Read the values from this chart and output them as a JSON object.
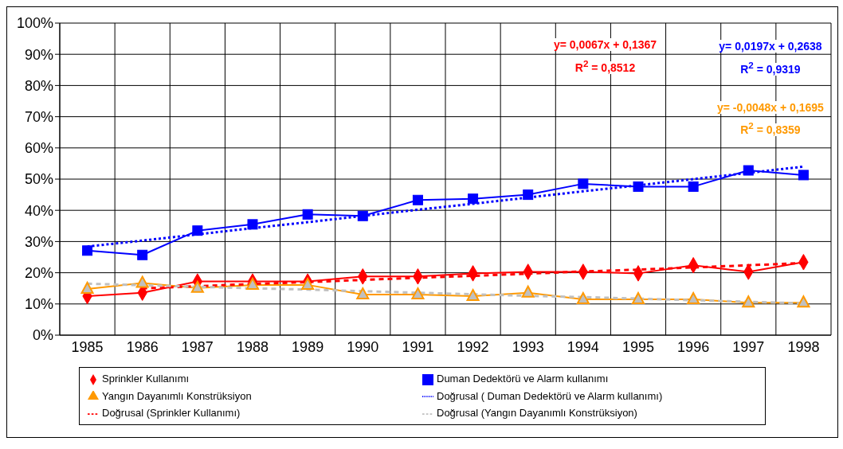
{
  "chart_data": {
    "type": "line",
    "categories": [
      "1985",
      "1986",
      "1987",
      "1988",
      "1989",
      "1990",
      "1991",
      "1992",
      "1993",
      "1994",
      "1995",
      "1996",
      "1997",
      "1998"
    ],
    "series": [
      {
        "name": "Sprinkler Kullanımı",
        "color": "#ff0000",
        "marker": "diamond",
        "line_style": "solid",
        "values": [
          12.5,
          13.6,
          17.2,
          17.2,
          17.2,
          18.8,
          18.8,
          19.8,
          20.3,
          20.3,
          19.8,
          22.4,
          20.3,
          23.4
        ]
      },
      {
        "name": "Duman Dedektörü ve Alarm kullanımı",
        "color": "#0000ff",
        "marker": "square",
        "line_style": "solid",
        "values": [
          27.1,
          25.7,
          33.5,
          35.5,
          38.7,
          38.2,
          43.3,
          43.7,
          45.0,
          48.5,
          47.6,
          47.6,
          52.8,
          51.3
        ]
      },
      {
        "name": "Yangın Dayanımlı Konstrüksiyon",
        "color": "#ff9900",
        "marker": "triangle",
        "line_style": "solid",
        "values": [
          14.8,
          16.7,
          15.1,
          16.1,
          16.1,
          13.0,
          13.0,
          12.5,
          13.6,
          11.5,
          11.5,
          11.5,
          10.4,
          10.4
        ]
      },
      {
        "name": "Doğrusal ( Duman Dedektörü ve Alarm kullanımı)",
        "color": "#0000ff",
        "marker": "none",
        "line_style": "dotted",
        "values": [
          28.4,
          30.3,
          32.3,
          34.3,
          36.2,
          38.2,
          40.2,
          42.1,
          44.1,
          46.1,
          48.0,
          50.0,
          52.0,
          54.0
        ]
      },
      {
        "name": "Doğrusal (Sprinkler Kullanımı)",
        "color": "#ff0000",
        "marker": "none",
        "line_style": "dashed",
        "values": [
          null,
          15.0,
          15.7,
          16.4,
          17.0,
          17.7,
          18.4,
          19.0,
          19.7,
          20.4,
          21.0,
          21.7,
          22.4,
          23.1
        ]
      },
      {
        "name": "Doğrusal (Yangın Dayanımlı Konstrüksiyon)",
        "color": "#c0c0c0",
        "marker": "none",
        "line_style": "dashed",
        "values": [
          16.5,
          16.0,
          15.5,
          15.0,
          14.6,
          14.1,
          13.6,
          13.1,
          12.6,
          12.2,
          11.7,
          11.2,
          10.7,
          10.2
        ]
      }
    ],
    "ylim": [
      0,
      100
    ],
    "yticks": [
      {
        "value": 0,
        "label": "0%"
      },
      {
        "value": 10,
        "label": "10%"
      },
      {
        "value": 20,
        "label": "20%"
      },
      {
        "value": 30,
        "label": "30%"
      },
      {
        "value": 40,
        "label": "40%"
      },
      {
        "value": 50,
        "label": "50%"
      },
      {
        "value": 60,
        "label": "60%"
      },
      {
        "value": 70,
        "label": "70%"
      },
      {
        "value": 80,
        "label": "80%"
      },
      {
        "value": 90,
        "label": "90%"
      },
      {
        "value": 100,
        "label": "100%"
      }
    ],
    "grid": true,
    "legend": "bottom",
    "annotations": [
      "y= 0,0067x + 0,1367",
      "R$^{2}$ = 0,8512",
      "y= 0,0197x + 0,2638",
      "R$^{2}$ = 0,9319",
      "y= -0,0048x + 0,1695",
      "R$^{2}$ = 0,8359"
    ]
  }
}
